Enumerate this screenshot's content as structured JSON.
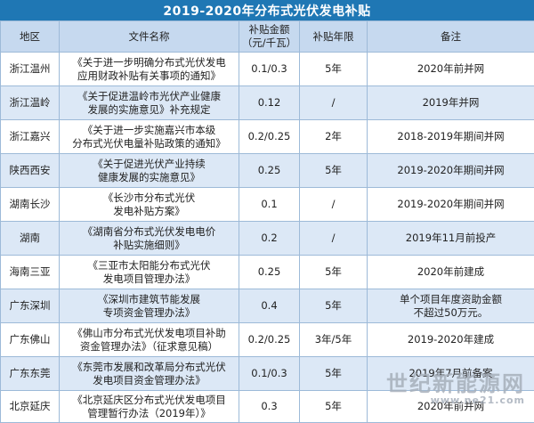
{
  "title": "2019-2020年分布式光伏发电补贴",
  "headers": {
    "region": "地区",
    "file": "文件名称",
    "amount": "补贴金额\n（元/千瓦）",
    "years": "补贴年限",
    "note": "备注"
  },
  "rows": [
    {
      "region": "浙江温州",
      "file": "《关于进一步明确分布式光伏发电\n应用财政补贴有关事项的通知》",
      "amount": "0.1/0.3",
      "years": "5年",
      "note": "2020年前并网"
    },
    {
      "region": "浙江温岭",
      "file": "《关于促进温岭市光伏产业健康\n发展的实施意见》补充规定",
      "amount": "0.12",
      "years": "/",
      "note": "2019年并网"
    },
    {
      "region": "浙江嘉兴",
      "file": "《关于进一步实施嘉兴市本级\n分布式光伏电量补贴政策的通知》",
      "amount": "0.2/0.25",
      "years": "2年",
      "note": "2018-2019年期间并网"
    },
    {
      "region": "陕西西安",
      "file": "《关于促进光伏产业持续\n健康发展的实施意见》",
      "amount": "0.25",
      "years": "5年",
      "note": "2019-2020年期间并网"
    },
    {
      "region": "湖南长沙",
      "file": "《长沙市分布式光伏\n发电补贴方案》",
      "amount": "0.1",
      "years": "/",
      "note": "2019-2020年期间并网"
    },
    {
      "region": "湖南",
      "file": "《湖南省分布式光伏发电电价\n补贴实施细则》",
      "amount": "0.2",
      "years": "/",
      "note": "2019年11月前投产"
    },
    {
      "region": "海南三亚",
      "file": "《三亚市太阳能分布式光伏\n发电项目管理办法》",
      "amount": "0.25",
      "years": "5年",
      "note": "2020年前建成"
    },
    {
      "region": "广东深圳",
      "file": "《深圳市建筑节能发展\n专项资金管理办法》",
      "amount": "0.4",
      "years": "5年",
      "note": "单个项目年度资助金额\n不超过50万元。"
    },
    {
      "region": "广东佛山",
      "file": "《佛山市分布式光伏发电项目补助\n资金管理办法》（征求意见稿）",
      "amount": "0.2/0.25",
      "years": "3年/5年",
      "note": "2019-2020年建成"
    },
    {
      "region": "广东东莞",
      "file": "《东莞市发展和改革局分布式光伏\n发电项目资金管理办法》",
      "amount": "0.1/0.3",
      "years": "5年",
      "note": "2019年7月前备案"
    },
    {
      "region": "北京延庆",
      "file": "《北京延庆区分布式光伏发电项目\n管理暂行办法（2019年）》",
      "amount": "0.3",
      "years": "5年",
      "note": "2020年前并网"
    }
  ],
  "watermark": {
    "main": "世纪新能源网",
    "url": "www.ne21.com"
  }
}
